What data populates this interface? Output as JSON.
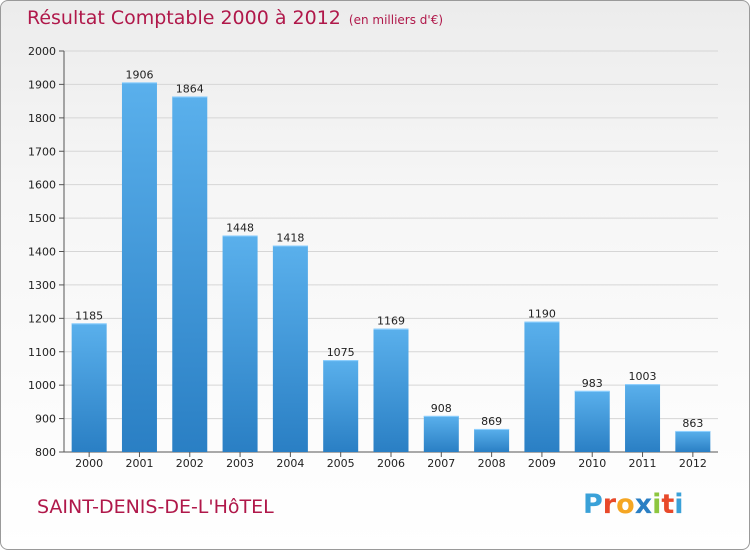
{
  "header": {
    "title": "Résultat Comptable 2000 à 2012",
    "unit": "(en milliers d'€)"
  },
  "footer": {
    "location": "SAINT-DENIS-DE-L'HôTEL",
    "logo": "Proxiti"
  },
  "colors": {
    "title": "#b0184a",
    "bar_top": "#5ab0ec",
    "bar_bottom": "#2a7fc4",
    "logo": [
      "#3aa1d8",
      "#e8492a",
      "#f5a623",
      "#2a7fc4",
      "#8dc63f",
      "#e8492a",
      "#3aa1d8"
    ]
  },
  "chart_data": {
    "type": "bar",
    "title": "Résultat Comptable 2000 à 2012",
    "subtitle": "(en milliers d'€)",
    "categories": [
      "2000",
      "2001",
      "2002",
      "2003",
      "2004",
      "2005",
      "2006",
      "2007",
      "2008",
      "2009",
      "2010",
      "2011",
      "2012"
    ],
    "values": [
      1185,
      1906,
      1864,
      1448,
      1418,
      1075,
      1169,
      908,
      869,
      1190,
      983,
      1003,
      863
    ],
    "ylim": [
      800,
      2000
    ],
    "yticks": [
      800,
      900,
      1000,
      1100,
      1200,
      1300,
      1400,
      1500,
      1600,
      1700,
      1800,
      1900,
      2000
    ],
    "grid": true,
    "legend": "none"
  }
}
